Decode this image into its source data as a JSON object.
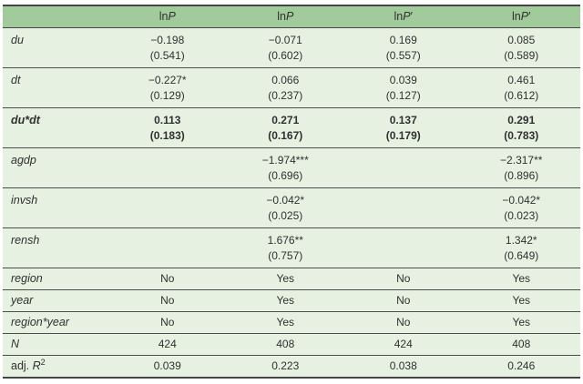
{
  "theme": {
    "header_bg": "#a2cb9c",
    "row_bg": "#e6f1e2",
    "rule_color": "#454545",
    "text_color": "#303030"
  },
  "table": {
    "header": [
      {
        "prefix": "",
        "var": "",
        "prime": ""
      },
      {
        "prefix": "ln",
        "var": "P",
        "prime": ""
      },
      {
        "prefix": "ln",
        "var": "P",
        "prime": ""
      },
      {
        "prefix": "ln",
        "var": "P",
        "prime": "′"
      },
      {
        "prefix": "ln",
        "var": "P",
        "prime": "′"
      }
    ],
    "rows": [
      {
        "label": "du",
        "cells": [
          {
            "est": "−0.198",
            "se": "(0.541)"
          },
          {
            "est": "−0.071",
            "se": "(0.602)"
          },
          {
            "est": "0.169",
            "se": "(0.557)"
          },
          {
            "est": "0.085",
            "se": "(0.589)"
          }
        ]
      },
      {
        "label": "dt",
        "cells": [
          {
            "est": "−0.227*",
            "se": "(0.129)"
          },
          {
            "est": "0.066",
            "se": "(0.237)"
          },
          {
            "est": "0.039",
            "se": "(0.127)"
          },
          {
            "est": "0.461",
            "se": "(0.612)"
          }
        ]
      },
      {
        "label": "du*dt",
        "cells": [
          {
            "est": "0.113",
            "se": "(0.183)"
          },
          {
            "est": "0.271",
            "se": "(0.167)"
          },
          {
            "est": "0.137",
            "se": "(0.179)"
          },
          {
            "est": "0.291",
            "se": "(0.783)"
          }
        ]
      },
      {
        "label": "agdp",
        "cells": [
          {},
          {
            "est": "−1.974***",
            "se": "(0.696)"
          },
          {},
          {
            "est": "−2.317**",
            "se": "(0.896)"
          }
        ]
      },
      {
        "label": "invsh",
        "cells": [
          {},
          {
            "est": "−0.042*",
            "se": "(0.025)"
          },
          {},
          {
            "est": "−0.042*",
            "se": "(0.023)"
          }
        ]
      },
      {
        "label": "rensh",
        "cells": [
          {},
          {
            "est": "1.676**",
            "se": "(0.757)"
          },
          {},
          {
            "est": "1.342*",
            "se": "(0.649)"
          }
        ]
      },
      {
        "label": "region",
        "values": [
          "No",
          "Yes",
          "No",
          "Yes"
        ]
      },
      {
        "label": "year",
        "values": [
          "No",
          "Yes",
          "No",
          "Yes"
        ]
      },
      {
        "label": "region*year",
        "values": [
          "No",
          "Yes",
          "No",
          "Yes"
        ]
      },
      {
        "label": "N",
        "values": [
          "424",
          "408",
          "424",
          "408"
        ]
      },
      {
        "label_prefix": "adj. ",
        "label_var": "R",
        "label_sup": "2",
        "values": [
          "0.039",
          "0.223",
          "0.038",
          "0.246"
        ]
      }
    ]
  }
}
